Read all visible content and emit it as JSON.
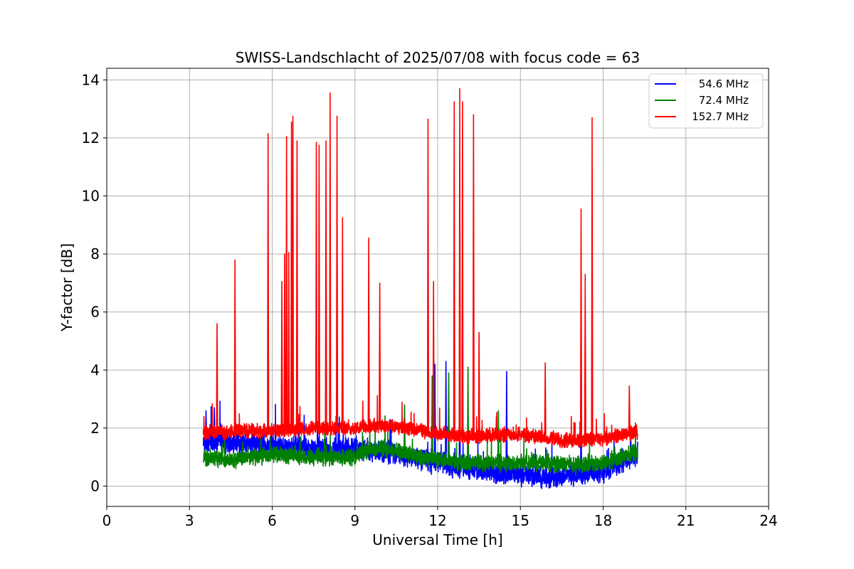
{
  "chart_data": {
    "type": "line",
    "title": "SWISS-Landschlacht of 2025/07/08 with focus code = 63",
    "xlabel": "Universal Time [h]",
    "ylabel": "Y-factor [dB]",
    "xlim": [
      0,
      24
    ],
    "ylim": [
      -0.7,
      14.4
    ],
    "xticks": [
      0,
      3,
      6,
      9,
      12,
      15,
      18,
      21,
      24
    ],
    "xtick_labels": [
      "0",
      "3",
      "6",
      "9",
      "12",
      "15",
      "18",
      "21",
      "24"
    ],
    "yticks": [
      0,
      2,
      4,
      6,
      8,
      10,
      12,
      14
    ],
    "ytick_labels": [
      "0",
      "2",
      "4",
      "6",
      "8",
      "10",
      "12",
      "14"
    ],
    "grid": true,
    "legend_position": "top-right",
    "series": [
      {
        "name": "54.6 MHz",
        "color": "#0000ff",
        "x_range": [
          3.5,
          19.25
        ],
        "baseline": [
          [
            3.5,
            1.6
          ],
          [
            4.5,
            1.5
          ],
          [
            6,
            1.4
          ],
          [
            7.5,
            1.3
          ],
          [
            9,
            1.3
          ],
          [
            10,
            1.2
          ],
          [
            11,
            1.0
          ],
          [
            12,
            0.8
          ],
          [
            13,
            0.6
          ],
          [
            14,
            0.5
          ],
          [
            15,
            0.4
          ],
          [
            16,
            0.3
          ],
          [
            17,
            0.4
          ],
          [
            18,
            0.5
          ],
          [
            19.25,
            1.1
          ]
        ],
        "noise": 0.45,
        "spikes": [
          [
            3.6,
            2.6
          ],
          [
            3.9,
            2.7
          ],
          [
            11.9,
            4.2
          ],
          [
            12.3,
            4.3
          ],
          [
            12.8,
            3.9
          ],
          [
            14.5,
            3.95
          ],
          [
            17.2,
            2.6
          ],
          [
            19.0,
            1.9
          ]
        ]
      },
      {
        "name": "72.4 MHz",
        "color": "#008000",
        "x_range": [
          3.5,
          19.25
        ],
        "baseline": [
          [
            3.5,
            1.0
          ],
          [
            4.5,
            0.9
          ],
          [
            6,
            1.1
          ],
          [
            7.5,
            1.0
          ],
          [
            9,
            1.0
          ],
          [
            9.5,
            1.3
          ],
          [
            10,
            1.3
          ],
          [
            11,
            1.1
          ],
          [
            12,
            0.9
          ],
          [
            13,
            0.8
          ],
          [
            14,
            0.8
          ],
          [
            15,
            0.8
          ],
          [
            16,
            0.8
          ],
          [
            17,
            0.7
          ],
          [
            18,
            0.8
          ],
          [
            19.25,
            1.2
          ]
        ],
        "noise": 0.35,
        "spikes": [
          [
            10.8,
            2.8
          ],
          [
            11.8,
            3.8
          ],
          [
            12.4,
            3.9
          ],
          [
            13.1,
            4.1
          ],
          [
            14.2,
            2.6
          ]
        ]
      },
      {
        "name": "152.7 MHz",
        "color": "#ff0000",
        "x_range": [
          3.5,
          19.25
        ],
        "baseline": [
          [
            3.5,
            1.85
          ],
          [
            5,
            1.9
          ],
          [
            7,
            1.95
          ],
          [
            9,
            2.0
          ],
          [
            10,
            2.1
          ],
          [
            11,
            2.0
          ],
          [
            12,
            1.8
          ],
          [
            13,
            1.7
          ],
          [
            14,
            1.75
          ],
          [
            15,
            1.8
          ],
          [
            16,
            1.65
          ],
          [
            17,
            1.55
          ],
          [
            18,
            1.65
          ],
          [
            19.25,
            1.85
          ]
        ],
        "noise": 0.3,
        "spikes": [
          [
            4.0,
            5.6
          ],
          [
            4.65,
            7.8
          ],
          [
            5.85,
            12.15
          ],
          [
            6.35,
            7.05
          ],
          [
            6.45,
            8.0
          ],
          [
            6.52,
            12.05
          ],
          [
            6.6,
            8.05
          ],
          [
            6.7,
            12.55
          ],
          [
            6.75,
            12.75
          ],
          [
            6.9,
            11.9
          ],
          [
            7.6,
            11.85
          ],
          [
            7.7,
            11.75
          ],
          [
            7.95,
            11.9
          ],
          [
            8.1,
            13.55
          ],
          [
            8.35,
            12.75
          ],
          [
            8.55,
            9.25
          ],
          [
            9.5,
            8.55
          ],
          [
            9.9,
            7.0
          ],
          [
            11.65,
            12.65
          ],
          [
            11.85,
            7.05
          ],
          [
            12.6,
            13.25
          ],
          [
            12.8,
            13.7
          ],
          [
            12.9,
            13.25
          ],
          [
            13.3,
            12.8
          ],
          [
            13.5,
            5.3
          ],
          [
            15.9,
            4.25
          ],
          [
            17.2,
            9.55
          ],
          [
            17.35,
            7.3
          ],
          [
            17.6,
            12.7
          ],
          [
            18.95,
            3.45
          ]
        ]
      }
    ]
  }
}
